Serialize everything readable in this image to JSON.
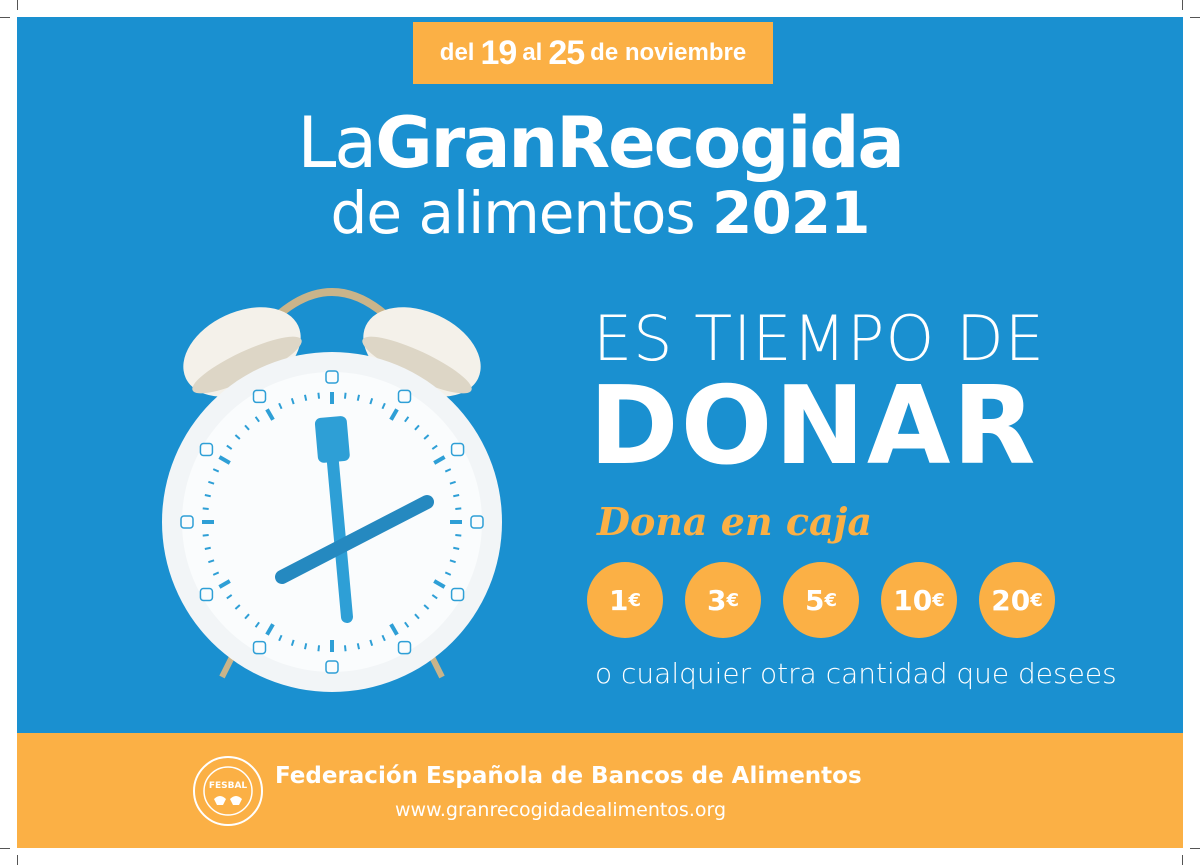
{
  "colors": {
    "blue": "#1a90d0",
    "orange": "#fbb045",
    "white": "#ffffff"
  },
  "date_banner": {
    "del": "del",
    "start": "19",
    "al": "al",
    "end": "25",
    "month": "de noviembre"
  },
  "title": {
    "prefix": "La",
    "bold": "GranRecogida",
    "line2": "de alimentos",
    "year": "2021"
  },
  "headline": {
    "line1": "ES TIEMPO DE",
    "line2": "DONAR"
  },
  "subheadline": "Dona en caja",
  "amounts": [
    {
      "value": "1",
      "currency": "€"
    },
    {
      "value": "3",
      "currency": "€"
    },
    {
      "value": "5",
      "currency": "€"
    },
    {
      "value": "10",
      "currency": "€"
    },
    {
      "value": "20",
      "currency": "€"
    }
  ],
  "other_amount": "o cualquier otra cantidad que desees",
  "footer": {
    "organization": "Federación Española de Bancos de Alimentos",
    "url": "www.granrecogidadealimentos.org",
    "logo_text": "FESBAL",
    "logo_ring": "BANCOS DE ALIMENTOS"
  },
  "illustration": "alarm-clock-plate-with-fork-and-knife"
}
